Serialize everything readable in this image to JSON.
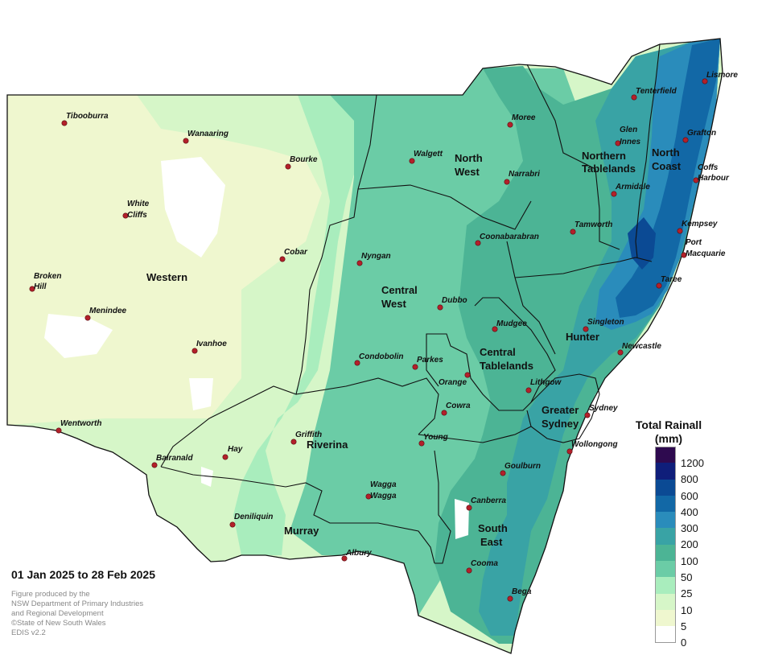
{
  "map": {
    "regions": [
      {
        "id": "western",
        "lines": [
          "Western"
        ]
      },
      {
        "id": "north-west",
        "lines": [
          "North",
          "West"
        ]
      },
      {
        "id": "northern-tablelands",
        "lines": [
          "Northern",
          "Tablelands"
        ]
      },
      {
        "id": "north-coast",
        "lines": [
          "North",
          "Coast"
        ]
      },
      {
        "id": "central-west",
        "lines": [
          "Central",
          "West"
        ]
      },
      {
        "id": "hunter",
        "lines": [
          "Hunter"
        ]
      },
      {
        "id": "central-tablelands",
        "lines": [
          "Central",
          "Tablelands"
        ]
      },
      {
        "id": "greater-sydney",
        "lines": [
          "Greater",
          "Sydney"
        ]
      },
      {
        "id": "riverina",
        "lines": [
          "Riverina"
        ]
      },
      {
        "id": "murray",
        "lines": [
          "Murray"
        ]
      },
      {
        "id": "south-east",
        "lines": [
          "South",
          "East"
        ]
      }
    ],
    "towns": [
      {
        "lines": [
          "Tibooburra"
        ]
      },
      {
        "lines": [
          "Wanaaring"
        ]
      },
      {
        "lines": [
          "Bourke"
        ]
      },
      {
        "lines": [
          "White",
          "Cliffs"
        ]
      },
      {
        "lines": [
          "Broken",
          "Hill"
        ]
      },
      {
        "lines": [
          "Menindee"
        ]
      },
      {
        "lines": [
          "Ivanhoe"
        ]
      },
      {
        "lines": [
          "Cobar"
        ]
      },
      {
        "lines": [
          "Wentworth"
        ]
      },
      {
        "lines": [
          "Hay"
        ]
      },
      {
        "lines": [
          "Balranald"
        ]
      },
      {
        "lines": [
          "Griffith"
        ]
      },
      {
        "lines": [
          "Deniliquin"
        ]
      },
      {
        "lines": [
          "Albury"
        ]
      },
      {
        "lines": [
          "Wagga",
          "Wagga"
        ]
      },
      {
        "lines": [
          "Young"
        ]
      },
      {
        "lines": [
          "Cowra"
        ]
      },
      {
        "lines": [
          "Orange"
        ]
      },
      {
        "lines": [
          "Parkes"
        ]
      },
      {
        "lines": [
          "Condobolin"
        ]
      },
      {
        "lines": [
          "Dubbo"
        ]
      },
      {
        "lines": [
          "Nyngan"
        ]
      },
      {
        "lines": [
          "Coonabarabran"
        ]
      },
      {
        "lines": [
          "Walgett"
        ]
      },
      {
        "lines": [
          "Moree"
        ]
      },
      {
        "lines": [
          "Narrabri"
        ]
      },
      {
        "lines": [
          "Tamworth"
        ]
      },
      {
        "lines": [
          "Armidale"
        ]
      },
      {
        "lines": [
          "Glen",
          "Innes"
        ]
      },
      {
        "lines": [
          "Tenterfield"
        ]
      },
      {
        "lines": [
          "Lismore"
        ]
      },
      {
        "lines": [
          "Grafton"
        ]
      },
      {
        "lines": [
          "Coffs",
          "Harbour"
        ]
      },
      {
        "lines": [
          "Kempsey"
        ]
      },
      {
        "lines": [
          "Port",
          "Macquarie"
        ]
      },
      {
        "lines": [
          "Taree"
        ]
      },
      {
        "lines": [
          "Singleton"
        ]
      },
      {
        "lines": [
          "Newcastle"
        ]
      },
      {
        "lines": [
          "Mudgee"
        ]
      },
      {
        "lines": [
          "Lithgow"
        ]
      },
      {
        "lines": [
          "Sydney"
        ]
      },
      {
        "lines": [
          "Wollongong"
        ]
      },
      {
        "lines": [
          "Goulburn"
        ]
      },
      {
        "lines": [
          "Canberra"
        ]
      },
      {
        "lines": [
          "Cooma"
        ]
      },
      {
        "lines": [
          "Bega"
        ]
      }
    ],
    "town_marker_color": "#b3202a"
  },
  "legend": {
    "title_line1": "Total Rainall",
    "title_line2": "(mm)",
    "bins": [
      {
        "color": "#2e0a4f"
      },
      {
        "color": "#0f1e7a"
      },
      {
        "color": "#0b4a94"
      },
      {
        "color": "#1268a6"
      },
      {
        "color": "#2a8cbb"
      },
      {
        "color": "#39a3a5"
      },
      {
        "color": "#4cb495"
      },
      {
        "color": "#6bcca6"
      },
      {
        "color": "#a9edbd"
      },
      {
        "color": "#d6f6c8"
      },
      {
        "color": "#eff7cf"
      },
      {
        "color": "#ffffff"
      }
    ],
    "labels": [
      "1200",
      "800",
      "600",
      "400",
      "300",
      "200",
      "100",
      "50",
      "25",
      "10",
      "5",
      "0"
    ]
  },
  "date_range": "01 Jan 2025 to 28 Feb 2025",
  "credits": [
    "Figure produced by the",
    "NSW Department of Primary Industries",
    "and Regional Development",
    "©State of New South Wales",
    "EDIS v2.2"
  ]
}
